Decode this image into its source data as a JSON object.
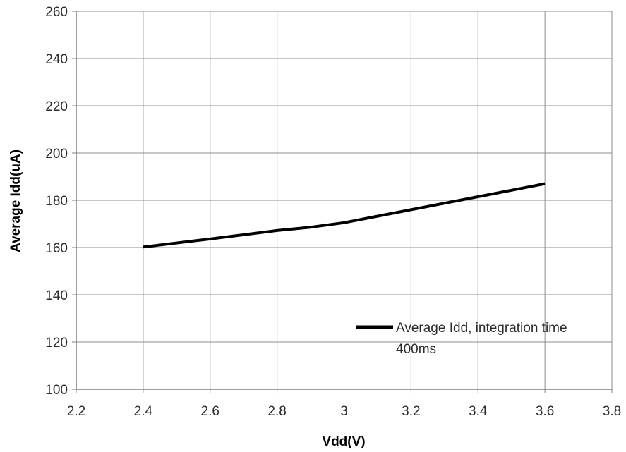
{
  "chart_data": {
    "type": "line",
    "title": "",
    "xlabel": "Vdd(V)",
    "ylabel": "Average Idd(uA)",
    "xlim": [
      2.2,
      3.8
    ],
    "ylim": [
      100,
      260
    ],
    "xticks": [
      2.2,
      2.4,
      2.6,
      2.8,
      3.0,
      3.2,
      3.4,
      3.6,
      3.8
    ],
    "xtick_labels": [
      "2.2",
      "2.4",
      "2.6",
      "2.8",
      "3",
      "3.2",
      "3.4",
      "3.6",
      "3.8"
    ],
    "yticks": [
      100,
      120,
      140,
      160,
      180,
      200,
      220,
      240,
      260
    ],
    "ytick_labels": [
      "100",
      "120",
      "140",
      "160",
      "180",
      "200",
      "220",
      "240",
      "260"
    ],
    "grid": true,
    "legend_position": "inside-lower-right",
    "series": [
      {
        "name": "Average Idd, integration time 400ms",
        "legend_lines": [
          "Average Idd, integration time",
          "400ms"
        ],
        "color": "#000000",
        "x": [
          2.4,
          2.6,
          2.8,
          2.9,
          3.0,
          3.2,
          3.4,
          3.6
        ],
        "y": [
          160.2,
          163.6,
          167.2,
          168.6,
          170.5,
          176.0,
          181.5,
          187.0
        ]
      }
    ]
  }
}
